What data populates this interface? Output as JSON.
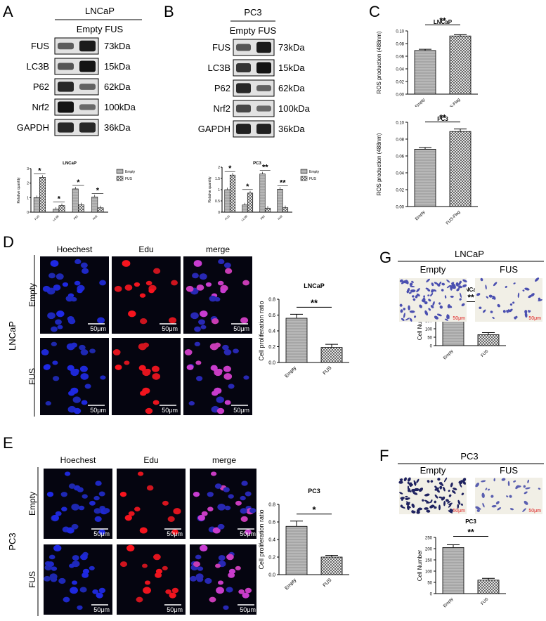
{
  "panels": {
    "A": {
      "letter": "A",
      "cell_line": "LNCaP",
      "lanes": "Empty FUS",
      "blots": [
        {
          "name": "FUS",
          "kda": "73kDa",
          "empty": 0.45,
          "fus": 0.95
        },
        {
          "name": "LC3B",
          "kda": "15kDa",
          "empty": 0.5,
          "fus": 1.0
        },
        {
          "name": "P62",
          "kda": "62kDa",
          "empty": 0.85,
          "fus": 0.4
        },
        {
          "name": "Nrf2",
          "kda": "100kDa",
          "empty": 1.0,
          "fus": 0.35
        },
        {
          "name": "GAPDH",
          "kda": "36kDa",
          "empty": 0.85,
          "fus": 0.85
        }
      ]
    },
    "B": {
      "letter": "B",
      "cell_line": "PC3",
      "lanes": "Empty FUS",
      "blots": [
        {
          "name": "FUS",
          "kda": "73kDa",
          "empty": 0.5,
          "fus": 0.95
        },
        {
          "name": "LC3B",
          "kda": "15kDa",
          "empty": 0.75,
          "fus": 1.0
        },
        {
          "name": "P62",
          "kda": "62kDa",
          "empty": 0.85,
          "fus": 0.4
        },
        {
          "name": "Nrf2",
          "kda": "100kDa",
          "empty": 0.6,
          "fus": 0.35
        },
        {
          "name": "GAPDH",
          "kda": "36kDa",
          "empty": 0.9,
          "fus": 0.9
        }
      ]
    },
    "C": {
      "letter": "C"
    },
    "D": {
      "letter": "D",
      "cell_line": "LNCaP",
      "cols": [
        "Hoechest",
        "Edu",
        "merge"
      ],
      "rows": [
        "Empty",
        "FUS"
      ],
      "scale": "50μm"
    },
    "E": {
      "letter": "E",
      "cell_line": "PC3",
      "cols": [
        "Hoechest",
        "Edu",
        "merge"
      ],
      "rows": [
        "Empty",
        "FUS"
      ],
      "scale": "50μm"
    },
    "G": {
      "letter": "G",
      "cell_line": "LNCaP",
      "cols": [
        "Empty",
        "FUS"
      ],
      "scale": "50μm"
    },
    "F": {
      "letter": "F",
      "cell_line": "PC3",
      "cols": [
        "Empty",
        "FUS"
      ],
      "scale": "50μm"
    }
  },
  "chart_data": [
    {
      "id": "A-quant",
      "type": "bar",
      "title": "LNCaP",
      "ylabel": "Relative quantity",
      "categories": [
        "FUS",
        "LC3B",
        "P62",
        "Nrf2"
      ],
      "ylim": [
        0,
        3
      ],
      "yticks": [
        0,
        1,
        2,
        3
      ],
      "series": [
        {
          "name": "Empty",
          "values": [
            1.0,
            0.2,
            1.6,
            1.05
          ]
        },
        {
          "name": "FUS",
          "values": [
            2.4,
            0.45,
            0.5,
            0.3
          ]
        }
      ],
      "significance": [
        "*",
        "*",
        "*",
        "*"
      ],
      "legend": "right"
    },
    {
      "id": "B-quant",
      "type": "bar",
      "title": "PC3",
      "ylabel": "Relative quantity",
      "categories": [
        "FUS",
        "LC3B",
        "P62",
        "Nrf2"
      ],
      "ylim": [
        0,
        2.0
      ],
      "yticks": [
        0,
        0.5,
        1.0,
        1.5,
        2.0
      ],
      "series": [
        {
          "name": "Empty",
          "values": [
            1.0,
            0.32,
            1.7,
            1.02
          ]
        },
        {
          "name": "FUS",
          "values": [
            1.65,
            0.85,
            0.18,
            0.2
          ]
        }
      ],
      "significance": [
        "*",
        "*",
        "**",
        "**"
      ],
      "legend": "right"
    },
    {
      "id": "C-lncap",
      "type": "bar",
      "title": "LNCaP",
      "ylabel": "ROS production (488nm)",
      "categories": [
        "Empty",
        "FUS-Flag"
      ],
      "values": [
        0.069,
        0.092
      ],
      "errors": [
        0.002,
        0.002
      ],
      "ylim": [
        0,
        0.1
      ],
      "yticks": [
        0.0,
        0.02,
        0.04,
        0.06,
        0.08,
        0.1
      ],
      "significance": "**"
    },
    {
      "id": "C-pc3",
      "type": "bar",
      "title": "PC3",
      "ylabel": "ROS production (488nm)",
      "categories": [
        "Empty",
        "FUS-Flag"
      ],
      "values": [
        0.068,
        0.089
      ],
      "errors": [
        0.002,
        0.003
      ],
      "ylim": [
        0,
        0.1
      ],
      "yticks": [
        0.0,
        0.02,
        0.04,
        0.06,
        0.08,
        0.1
      ],
      "significance": "**"
    },
    {
      "id": "D-quant",
      "type": "bar",
      "title": "LNCaP",
      "ylabel": "Cell proliferation ratio",
      "categories": [
        "Empty",
        "FUS"
      ],
      "values": [
        0.56,
        0.19
      ],
      "errors": [
        0.05,
        0.04
      ],
      "ylim": [
        0,
        0.8
      ],
      "yticks": [
        0.0,
        0.2,
        0.4,
        0.6,
        0.8
      ],
      "significance": "**"
    },
    {
      "id": "E-quant",
      "type": "bar",
      "title": "PC3",
      "ylabel": "Cell proliferation ratio",
      "categories": [
        "Empty",
        "FUS"
      ],
      "values": [
        0.55,
        0.2
      ],
      "errors": [
        0.06,
        0.02
      ],
      "ylim": [
        0,
        0.8
      ],
      "yticks": [
        0.0,
        0.2,
        0.4,
        0.6,
        0.8
      ],
      "significance": "*"
    },
    {
      "id": "G-quant",
      "type": "bar",
      "title": "LNCaP",
      "ylabel": "Cell Number",
      "categories": [
        "Empty",
        "FUS"
      ],
      "values": [
        205,
        65
      ],
      "errors": [
        22,
        12
      ],
      "ylim": [
        0,
        250
      ],
      "yticks": [
        0,
        50,
        100,
        150,
        200,
        250
      ],
      "significance": "**"
    },
    {
      "id": "F-quant",
      "type": "bar",
      "title": "PC3",
      "ylabel": "Cell Number",
      "categories": [
        "Empty",
        "FUS"
      ],
      "values": [
        205,
        60
      ],
      "errors": [
        12,
        8
      ],
      "ylim": [
        0,
        250
      ],
      "yticks": [
        0,
        50,
        100,
        150,
        200,
        250
      ],
      "significance": "**"
    }
  ]
}
